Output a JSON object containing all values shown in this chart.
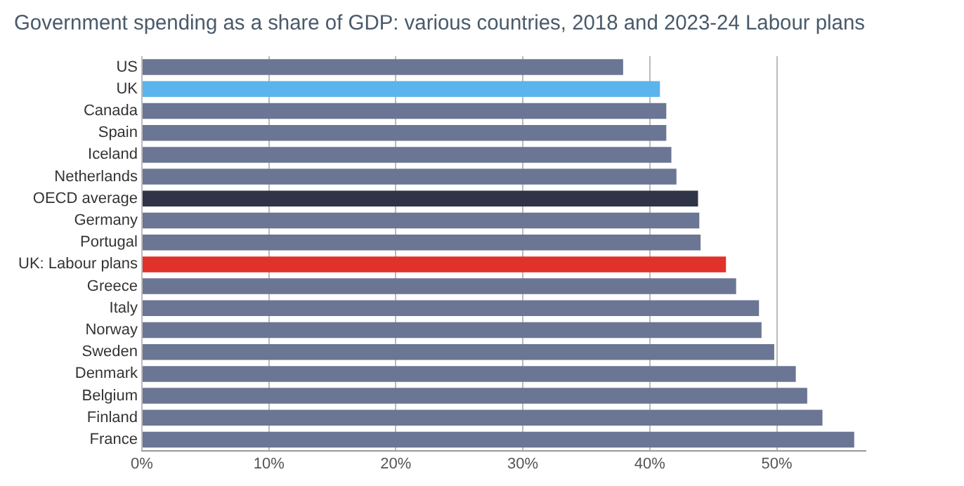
{
  "chart_data": {
    "type": "bar",
    "orientation": "horizontal",
    "title": "Government spending as a share of GDP: various countries, 2018 and 2023-24 Labour plans",
    "categories": [
      "US",
      "UK",
      "Canada",
      "Spain",
      "Iceland",
      "Netherlands",
      "OECD average",
      "Germany",
      "Portugal",
      "UK: Labour plans",
      "Greece",
      "Italy",
      "Norway",
      "Sweden",
      "Denmark",
      "Belgium",
      "Finland",
      "France"
    ],
    "values": [
      37.9,
      40.8,
      41.3,
      41.3,
      41.7,
      42.1,
      43.8,
      43.9,
      44.0,
      46.0,
      46.8,
      48.6,
      48.8,
      49.8,
      51.5,
      52.4,
      53.6,
      56.1
    ],
    "colors": [
      "#6b7594",
      "#5bb4ec",
      "#6b7594",
      "#6b7594",
      "#6b7594",
      "#6b7594",
      "#2f3447",
      "#6b7594",
      "#6b7594",
      "#e0322a",
      "#6b7594",
      "#6b7594",
      "#6b7594",
      "#6b7594",
      "#6b7594",
      "#6b7594",
      "#6b7594",
      "#6b7594"
    ],
    "xlim": [
      0,
      57
    ],
    "xticks": [
      {
        "value": 0,
        "label": "0%"
      },
      {
        "value": 10,
        "label": "10%"
      },
      {
        "value": 20,
        "label": "20%"
      },
      {
        "value": 30,
        "label": "30%"
      },
      {
        "value": 40,
        "label": "40%"
      },
      {
        "value": 50,
        "label": "50%"
      }
    ],
    "grid": "x",
    "legend": false
  }
}
